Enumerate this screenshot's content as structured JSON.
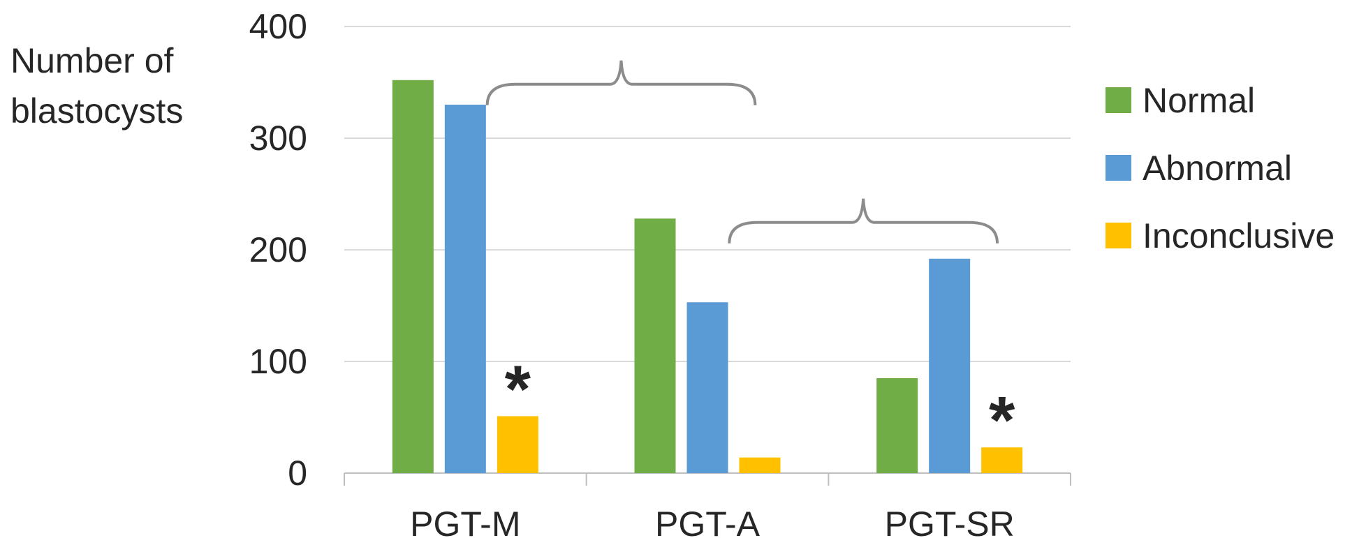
{
  "chart_data": {
    "type": "bar",
    "title": "",
    "xlabel": "",
    "ylabel": "Number of blastocysts",
    "ylabel_lines": [
      "Number of",
      "blastocysts"
    ],
    "categories": [
      "PGT-M",
      "PGT-A",
      "PGT-SR"
    ],
    "series": [
      {
        "name": "Normal",
        "color": "#70AD47",
        "values": [
          352,
          228,
          85
        ]
      },
      {
        "name": "Abnormal",
        "color": "#5B9BD5",
        "values": [
          330,
          153,
          192
        ]
      },
      {
        "name": "Inconclusive",
        "color": "#FFC000",
        "values": [
          51,
          14,
          23
        ]
      }
    ],
    "ylim": [
      0,
      400
    ],
    "yticks": [
      "0",
      "100",
      "200",
      "300",
      "400"
    ],
    "grid": true,
    "legend_position": "right",
    "annotations": [
      {
        "text": "*",
        "category": "PGT-M",
        "series": "Inconclusive"
      },
      {
        "text": "*",
        "category": "PGT-SR",
        "series": "Inconclusive"
      }
    ],
    "braces": [
      {
        "from": "PGT-M",
        "to": "PGT-A"
      },
      {
        "from": "PGT-A",
        "to": "PGT-SR"
      }
    ]
  }
}
